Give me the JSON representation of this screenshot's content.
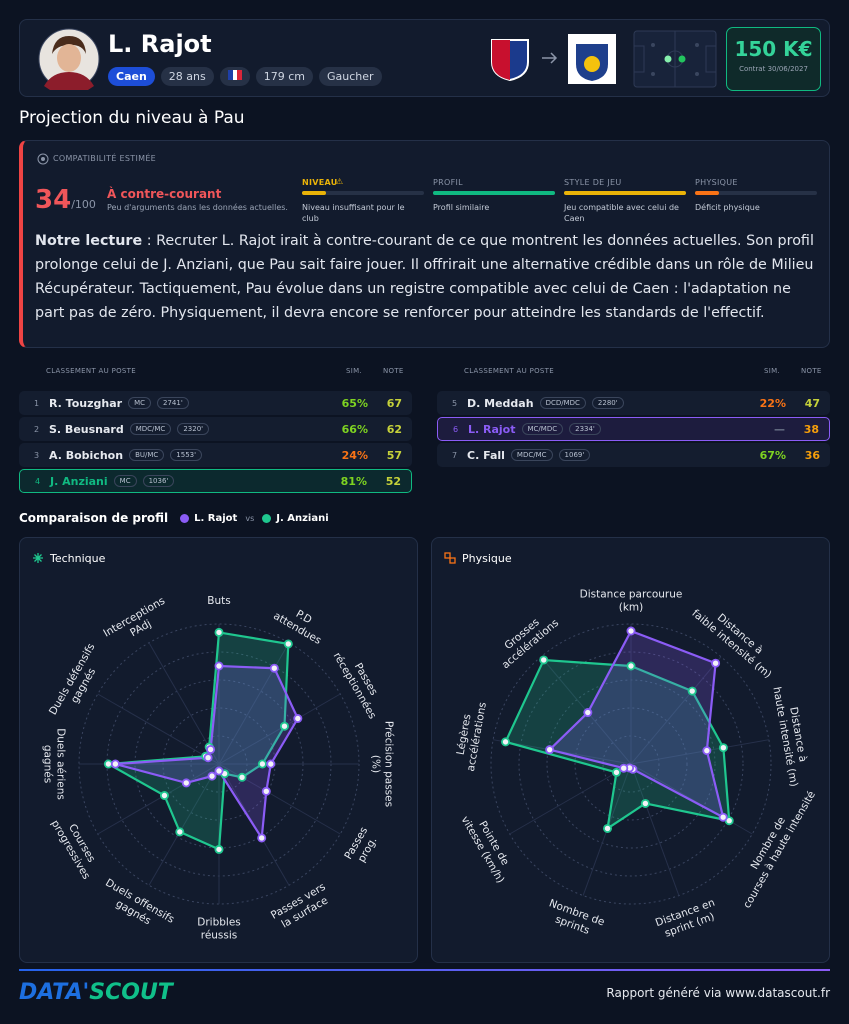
{
  "header": {
    "name": "L. Rajot",
    "club": "Caen",
    "age": "28 ans",
    "height": "179 cm",
    "foot": "Gaucher",
    "price": "150 K€",
    "contract": "Contrat 30/06/2027"
  },
  "page": {
    "section_title": "Projection du niveau à Pau"
  },
  "compatibility": {
    "label": "COMPATIBILITÉ ESTIMÉE",
    "score": 34,
    "out_of": "/100",
    "verdict": "À contre-courant",
    "verdict_text": "Peu d'arguments dans les données actuelles.",
    "gauges": [
      {
        "label": "NIVEAU",
        "value": 20,
        "color": "#eab308",
        "text": "Niveau insuffisant pour le club"
      },
      {
        "label": "PROFIL",
        "value": 100,
        "color": "#10b981",
        "text": "Profil similaire"
      },
      {
        "label": "STYLE DE JEU",
        "value": 100,
        "color": "#eab308",
        "text": "Jeu compatible avec celui de Caen"
      },
      {
        "label": "PHYSIQUE",
        "value": 20,
        "color": "#f97316",
        "text": "Déficit physique"
      }
    ]
  },
  "reading": {
    "lead": "Notre lecture",
    "text": ": Recruter L. Rajot irait à contre-courant de ce que montrent les données actuelles. Son profil prolonge celui de J. Anziani, que Pau sait faire jouer. Il offrirait une alternative crédible dans un rôle de Milieu Récupérateur. Tactiquement, Pau évolue dans un registre compatible avec celui de Caen : l'adaptation ne part pas de zéro. Physiquement, il devra encore se renforcer pour atteindre les standards de l'effectif."
  },
  "ranking": {
    "headers": [
      "CLASSEMENT AU POSTE",
      "SIM.",
      "NOTE"
    ],
    "panels": [
      [
        {
          "rank": 1,
          "name": "R. Touzghar",
          "position": "MC",
          "minutes": "2741'",
          "sim": "65%",
          "note": 67
        },
        {
          "rank": 2,
          "name": "S. Beusnard",
          "position": "MDC/MC",
          "minutes": "2320'",
          "sim": "66%",
          "note": 62
        },
        {
          "rank": 3,
          "name": "A. Bobichon",
          "position": "BU/MC",
          "minutes": "1553'",
          "sim": "24%",
          "note": 57
        },
        {
          "rank": 4,
          "name": "J. Anziani",
          "position": "MC",
          "minutes": "1036'",
          "sim": "81%",
          "note": 52,
          "highlight": "#10b981"
        }
      ],
      [
        {
          "rank": 5,
          "name": "D. Meddah",
          "position": "DCD/MDC",
          "minutes": "2280'",
          "sim": "22%",
          "note": 47
        },
        {
          "rank": 6,
          "name": "L. Rajot",
          "position": "MC/MDC",
          "minutes": "2334'",
          "sim": "—",
          "note": 38,
          "highlight": "#8b5cf6"
        },
        {
          "rank": 7,
          "name": "C. Fall",
          "position": "MDC/MC",
          "minutes": "1069'",
          "sim": "67%",
          "note": 36
        }
      ]
    ]
  },
  "comparison": {
    "title": "Comparaison de profil",
    "vs": "vs",
    "charts": [
      {
        "type": "radar",
        "title": "Technique",
        "rlim": [
          0,
          100
        ],
        "rticks": [
          20,
          40,
          60,
          80,
          100
        ],
        "axes": [
          [
            "Buts"
          ],
          [
            "P.D",
            "attendues"
          ],
          [
            "Passes",
            "réceptionnées"
          ],
          [
            "Précision passes",
            "(%)"
          ],
          [
            "Passes",
            "prog."
          ],
          [
            "Passes vers",
            "la surface"
          ],
          [
            "Dribbles",
            "réussis"
          ],
          [
            "Duels offensifs",
            "gagnés"
          ],
          [
            "Courses",
            "progressives"
          ],
          [
            "Duels aériens",
            "gagnés"
          ],
          [
            "Duels défensifs",
            "gagnés"
          ],
          [
            "Interceptions",
            "PAdj"
          ]
        ],
        "series": [
          {
            "name": "J. Anziani",
            "color": "#1fc78f",
            "values": [
              94,
              99,
              54,
              31,
              19,
              8,
              61,
              56,
              45,
              79,
              11,
              14
            ]
          },
          {
            "name": "L. Rajot",
            "color": "#8b5cf6",
            "values": [
              70,
              79,
              65,
              37,
              39,
              61,
              5,
              10,
              27,
              74,
              9,
              12
            ]
          }
        ]
      },
      {
        "type": "radar",
        "title": "Physique",
        "rlim": [
          0,
          100
        ],
        "rticks": [
          20,
          40,
          60,
          80,
          100
        ],
        "axes": [
          [
            "Distance parcourue",
            "(km)"
          ],
          [
            "Distance à",
            "faible intensité (m)"
          ],
          [
            "Distance à",
            "haute intensité (m)"
          ],
          [
            "Nombre de",
            "courses à haute intensité"
          ],
          [
            "Distance en",
            "sprint (m)"
          ],
          [
            "Nombre de",
            "sprints"
          ],
          [
            "Pointe de",
            "vitesse (km/h)"
          ],
          [
            "Légères",
            "accélérations"
          ],
          [
            "Grosses",
            "accélérations"
          ]
        ],
        "series": [
          {
            "name": "J. Anziani",
            "color": "#1fc78f",
            "values": [
              70,
              68,
              67,
              81,
              30,
              49,
              12,
              91,
              97
            ]
          },
          {
            "name": "L. Rajot",
            "color": "#8b5cf6",
            "values": [
              95,
              94,
              55,
              76,
              4,
              3,
              6,
              59,
              48
            ]
          }
        ]
      }
    ]
  },
  "footer": {
    "logo_a": "DATA'",
    "logo_b": "SCOUT",
    "text": "Rapport généré via www.datascout.fr"
  }
}
